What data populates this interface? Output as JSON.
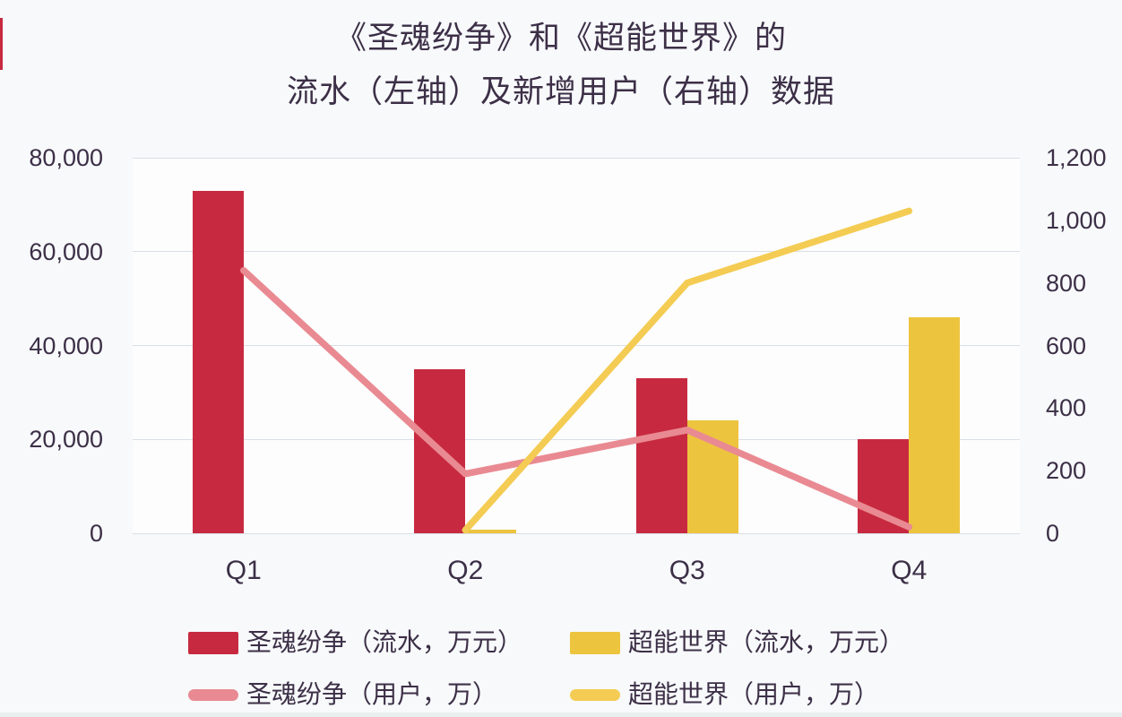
{
  "chart_data": {
    "type": "combo-bar-line",
    "title_line1": "《圣魂纷争》和《超能世界》的",
    "title_line2": "流水（左轴）及新增用户（右轴）数据",
    "categories": [
      "Q1",
      "Q2",
      "Q3",
      "Q4"
    ],
    "series": [
      {
        "name": "圣魂纷争（流水，万元）",
        "type": "bar",
        "axis": "left",
        "color": "#c72a40",
        "values": [
          73000,
          35000,
          33000,
          20000
        ]
      },
      {
        "name": "超能世界（流水，万元）",
        "type": "bar",
        "axis": "left",
        "color": "#edc43e",
        "values": [
          null,
          800,
          24000,
          46000
        ]
      },
      {
        "name": "圣魂纷争（用户，万）",
        "type": "line",
        "axis": "right",
        "color": "#e98a92",
        "values": [
          840,
          190,
          330,
          20
        ]
      },
      {
        "name": "超能世界（用户，万）",
        "type": "line",
        "axis": "right",
        "color": "#f4cc53",
        "values": [
          null,
          10,
          800,
          1030
        ]
      }
    ],
    "left_axis": {
      "min": 0,
      "max": 80000,
      "ticks": [
        {
          "value": 80000,
          "label": "80,000"
        },
        {
          "value": 60000,
          "label": "60,000"
        },
        {
          "value": 40000,
          "label": "40,000"
        },
        {
          "value": 20000,
          "label": "20,000"
        },
        {
          "value": 0,
          "label": "0"
        }
      ]
    },
    "right_axis": {
      "min": 0,
      "max": 1200,
      "ticks": [
        {
          "value": 1200,
          "label": "1,200"
        },
        {
          "value": 1000,
          "label": "1,000"
        },
        {
          "value": 800,
          "label": "800"
        },
        {
          "value": 600,
          "label": "600"
        },
        {
          "value": 400,
          "label": "400"
        },
        {
          "value": 200,
          "label": "200"
        },
        {
          "value": 0,
          "label": "0"
        }
      ]
    },
    "grid": true,
    "legend_position": "bottom",
    "legend_rows": [
      [
        0,
        1
      ],
      [
        2,
        3
      ]
    ]
  }
}
